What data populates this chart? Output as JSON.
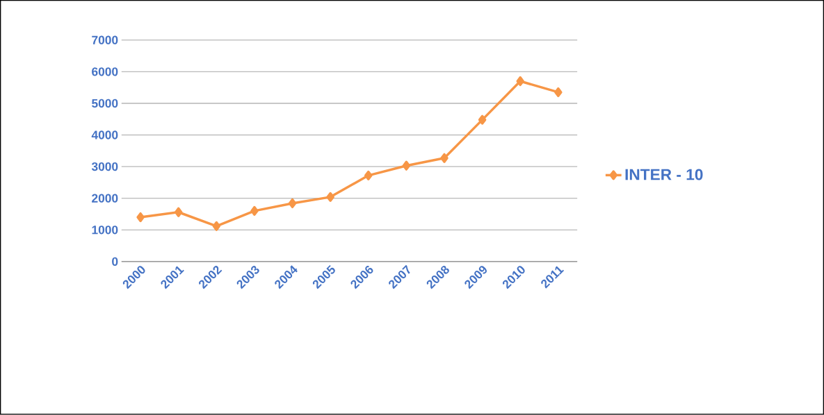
{
  "chart_data": {
    "type": "line",
    "categories": [
      "2000",
      "2001",
      "2002",
      "2003",
      "2004",
      "2005",
      "2006",
      "2007",
      "2008",
      "2009",
      "2010",
      "2011"
    ],
    "series": [
      {
        "name": "INTER - 10",
        "color": "#f79646",
        "values": [
          1400,
          1560,
          1120,
          1600,
          1840,
          2040,
          2720,
          3030,
          3270,
          4480,
          5700,
          5350
        ]
      }
    ],
    "ylim": [
      0,
      7000
    ],
    "yticks": [
      0,
      1000,
      2000,
      3000,
      4000,
      5000,
      6000,
      7000
    ],
    "grid": "y",
    "legend": "right",
    "marker": "diamond"
  }
}
